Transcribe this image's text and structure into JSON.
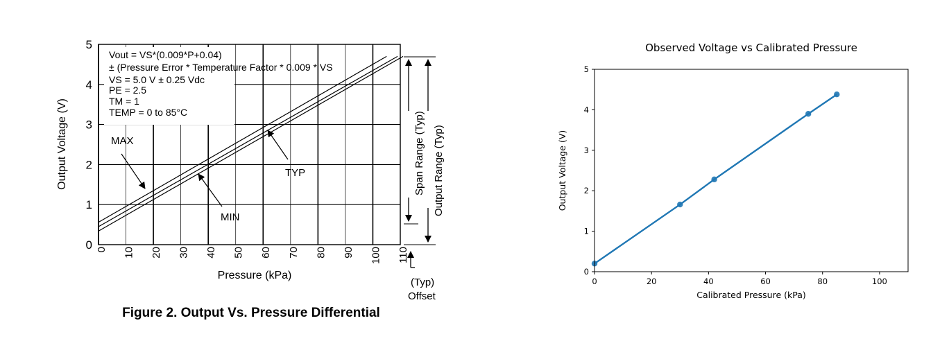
{
  "chart_data": [
    {
      "type": "line",
      "title": "",
      "caption": "Figure 2. Output Vs. Pressure Differential",
      "xlabel": "Pressure (kPa)",
      "ylabel": "Output Voltage (V)",
      "xlim": [
        0,
        110
      ],
      "ylim": [
        0,
        5
      ],
      "x_ticks": [
        "0",
        "10",
        "20",
        "30",
        "40",
        "50",
        "60",
        "70",
        "80",
        "90",
        "100",
        "110"
      ],
      "y_ticks": [
        "0",
        "1",
        "2",
        "3",
        "4",
        "5"
      ],
      "grid": true,
      "series": [
        {
          "name": "MAX",
          "x": [
            0,
            105
          ],
          "y": [
            0.56,
            4.7
          ]
        },
        {
          "name": "TYP",
          "x": [
            0,
            109
          ],
          "y": [
            0.45,
            4.7
          ]
        },
        {
          "name": "MIN",
          "x": [
            0,
            111
          ],
          "y": [
            0.34,
            4.7
          ]
        }
      ],
      "annotation_lines": [
        "Vout = VS*(0.009*P+0.04)",
        "± (Pressure Error * Temperature Factor * 0.009 * VS",
        "VS = 5.0 V ± 0.25 Vdc",
        "PE = 2.5",
        "TM = 1",
        "TEMP = 0 to 85°C"
      ],
      "range_labels": [
        "Span Range (Typ)",
        "Output Range (Typ)"
      ],
      "offset_label": [
        "(Typ)",
        "Offset"
      ]
    },
    {
      "type": "line",
      "title": "Observed Voltage vs Calibrated Pressure",
      "xlabel": "Calibrated Pressure (kPa)",
      "ylabel": "Output Voltage (V)",
      "xlim": [
        0,
        110
      ],
      "ylim": [
        0,
        5
      ],
      "x_ticks": [
        "0",
        "20",
        "40",
        "60",
        "80",
        "100"
      ],
      "y_ticks": [
        "0",
        "1",
        "2",
        "3",
        "4",
        "5"
      ],
      "grid": false,
      "color": "#1f77b4",
      "series": [
        {
          "x": [
            0,
            30,
            42,
            75,
            85
          ],
          "y": [
            0.2,
            1.66,
            2.28,
            3.9,
            4.38
          ]
        }
      ]
    }
  ]
}
